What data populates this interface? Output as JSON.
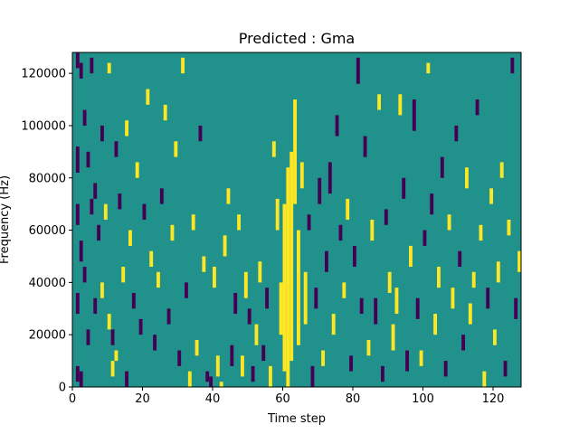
{
  "chart_data": {
    "type": "heatmap",
    "title": "Predicted : Gma",
    "xlabel": "Time step",
    "ylabel": "Frequency (Hz)",
    "xlim": [
      0,
      128
    ],
    "ylim": [
      0,
      128000
    ],
    "x_ticks": [
      0,
      20,
      40,
      60,
      80,
      100,
      120
    ],
    "y_ticks": [
      0,
      20000,
      40000,
      60000,
      80000,
      100000,
      120000
    ],
    "x_tick_labels": [
      "0",
      "20",
      "40",
      "60",
      "80",
      "100",
      "120"
    ],
    "y_tick_labels": [
      "0",
      "20000",
      "40000",
      "60000",
      "80000",
      "100000",
      "120000"
    ],
    "colors": {
      "low": "#440154",
      "mid": "#21918c",
      "high": "#fde725"
    },
    "grid": false,
    "cells": [
      {
        "t": 1,
        "f0": 122000,
        "f1": 128000,
        "v": "low"
      },
      {
        "t": 1,
        "f0": 82000,
        "f1": 92000,
        "v": "low"
      },
      {
        "t": 1,
        "f0": 62000,
        "f1": 70000,
        "v": "low"
      },
      {
        "t": 1,
        "f0": 28000,
        "f1": 36000,
        "v": "low"
      },
      {
        "t": 1,
        "f0": 2000,
        "f1": 8000,
        "v": "low"
      },
      {
        "t": 2,
        "f0": 118000,
        "f1": 124000,
        "v": "low"
      },
      {
        "t": 2,
        "f0": 48000,
        "f1": 56000,
        "v": "low"
      },
      {
        "t": 2,
        "f0": 0,
        "f1": 6000,
        "v": "low"
      },
      {
        "t": 3,
        "f0": 100000,
        "f1": 106000,
        "v": "low"
      },
      {
        "t": 3,
        "f0": 40000,
        "f1": 46000,
        "v": "low"
      },
      {
        "t": 4,
        "f0": 84000,
        "f1": 90000,
        "v": "low"
      },
      {
        "t": 4,
        "f0": 16000,
        "f1": 22000,
        "v": "low"
      },
      {
        "t": 5,
        "f0": 120000,
        "f1": 126000,
        "v": "low"
      },
      {
        "t": 5,
        "f0": 66000,
        "f1": 72000,
        "v": "low"
      },
      {
        "t": 6,
        "f0": 72000,
        "f1": 78000,
        "v": "low"
      },
      {
        "t": 6,
        "f0": 28000,
        "f1": 34000,
        "v": "low"
      },
      {
        "t": 7,
        "f0": 56000,
        "f1": 62000,
        "v": "low"
      },
      {
        "t": 8,
        "f0": 94000,
        "f1": 100000,
        "v": "low"
      },
      {
        "t": 8,
        "f0": 34000,
        "f1": 40000,
        "v": "yellow"
      },
      {
        "t": 9,
        "f0": 64000,
        "f1": 70000,
        "v": "high"
      },
      {
        "t": 10,
        "f0": 120000,
        "f1": 124000,
        "v": "high"
      },
      {
        "t": 10,
        "f0": 22000,
        "f1": 28000,
        "v": "high"
      },
      {
        "t": 11,
        "f0": 16000,
        "f1": 22000,
        "v": "low"
      },
      {
        "t": 11,
        "f0": 4000,
        "f1": 10000,
        "v": "high"
      },
      {
        "t": 12,
        "f0": 88000,
        "f1": 94000,
        "v": "low"
      },
      {
        "t": 12,
        "f0": 10000,
        "f1": 14000,
        "v": "high"
      },
      {
        "t": 13,
        "f0": 68000,
        "f1": 74000,
        "v": "low"
      },
      {
        "t": 14,
        "f0": 40000,
        "f1": 46000,
        "v": "high"
      },
      {
        "t": 15,
        "f0": 96000,
        "f1": 102000,
        "v": "high"
      },
      {
        "t": 15,
        "f0": 0,
        "f1": 6000,
        "v": "low"
      },
      {
        "t": 16,
        "f0": 54000,
        "f1": 60000,
        "v": "high"
      },
      {
        "t": 17,
        "f0": 30000,
        "f1": 36000,
        "v": "low"
      },
      {
        "t": 18,
        "f0": 80000,
        "f1": 86000,
        "v": "high"
      },
      {
        "t": 19,
        "f0": 20000,
        "f1": 26000,
        "v": "low"
      },
      {
        "t": 20,
        "f0": 64000,
        "f1": 70000,
        "v": "low"
      },
      {
        "t": 21,
        "f0": 108000,
        "f1": 114000,
        "v": "high"
      },
      {
        "t": 22,
        "f0": 46000,
        "f1": 52000,
        "v": "high"
      },
      {
        "t": 23,
        "f0": 14000,
        "f1": 20000,
        "v": "low"
      },
      {
        "t": 24,
        "f0": 38000,
        "f1": 44000,
        "v": "high"
      },
      {
        "t": 25,
        "f0": 70000,
        "f1": 76000,
        "v": "low"
      },
      {
        "t": 26,
        "f0": 102000,
        "f1": 108000,
        "v": "high"
      },
      {
        "t": 27,
        "f0": 24000,
        "f1": 30000,
        "v": "low"
      },
      {
        "t": 28,
        "f0": 56000,
        "f1": 62000,
        "v": "high"
      },
      {
        "t": 29,
        "f0": 88000,
        "f1": 94000,
        "v": "high"
      },
      {
        "t": 30,
        "f0": 8000,
        "f1": 14000,
        "v": "low"
      },
      {
        "t": 31,
        "f0": 120000,
        "f1": 126000,
        "v": "high"
      },
      {
        "t": 32,
        "f0": 34000,
        "f1": 40000,
        "v": "low"
      },
      {
        "t": 33,
        "f0": 0,
        "f1": 6000,
        "v": "high"
      },
      {
        "t": 34,
        "f0": 60000,
        "f1": 66000,
        "v": "high"
      },
      {
        "t": 35,
        "f0": 12000,
        "f1": 18000,
        "v": "high"
      },
      {
        "t": 36,
        "f0": 94000,
        "f1": 100000,
        "v": "low"
      },
      {
        "t": 37,
        "f0": 44000,
        "f1": 50000,
        "v": "high"
      },
      {
        "t": 38,
        "f0": 2000,
        "f1": 6000,
        "v": "low"
      },
      {
        "t": 39,
        "f0": 0,
        "f1": 4000,
        "v": "low"
      },
      {
        "t": 40,
        "f0": 38000,
        "f1": 46000,
        "v": "high"
      },
      {
        "t": 41,
        "f0": 4000,
        "f1": 12000,
        "v": "high"
      },
      {
        "t": 42,
        "f0": 0,
        "f1": 2000,
        "v": "high"
      },
      {
        "t": 43,
        "f0": 50000,
        "f1": 58000,
        "v": "high"
      },
      {
        "t": 44,
        "f0": 70000,
        "f1": 76000,
        "v": "high"
      },
      {
        "t": 45,
        "f0": 8000,
        "f1": 16000,
        "v": "low"
      },
      {
        "t": 46,
        "f0": 28000,
        "f1": 36000,
        "v": "low"
      },
      {
        "t": 47,
        "f0": 60000,
        "f1": 66000,
        "v": "high"
      },
      {
        "t": 48,
        "f0": 4000,
        "f1": 12000,
        "v": "high"
      },
      {
        "t": 49,
        "f0": 34000,
        "f1": 44000,
        "v": "high"
      },
      {
        "t": 50,
        "f0": 24000,
        "f1": 30000,
        "v": "low"
      },
      {
        "t": 51,
        "f0": 2000,
        "f1": 8000,
        "v": "low"
      },
      {
        "t": 52,
        "f0": 16000,
        "f1": 24000,
        "v": "high"
      },
      {
        "t": 53,
        "f0": 40000,
        "f1": 48000,
        "v": "high"
      },
      {
        "t": 54,
        "f0": 10000,
        "f1": 16000,
        "v": "low"
      },
      {
        "t": 55,
        "f0": 30000,
        "f1": 38000,
        "v": "low"
      },
      {
        "t": 56,
        "f0": 0,
        "f1": 8000,
        "v": "high"
      },
      {
        "t": 57,
        "f0": 88000,
        "f1": 94000,
        "v": "high"
      },
      {
        "t": 58,
        "f0": 60000,
        "f1": 72000,
        "v": "high"
      },
      {
        "t": 59,
        "f0": 20000,
        "f1": 40000,
        "v": "high"
      },
      {
        "t": 60,
        "f0": 6000,
        "f1": 70000,
        "v": "high"
      },
      {
        "t": 61,
        "f0": 0,
        "f1": 84000,
        "v": "high"
      },
      {
        "t": 62,
        "f0": 10000,
        "f1": 90000,
        "v": "high"
      },
      {
        "t": 63,
        "f0": 70000,
        "f1": 110000,
        "v": "high"
      },
      {
        "t": 64,
        "f0": 16000,
        "f1": 60000,
        "v": "high"
      },
      {
        "t": 65,
        "f0": 76000,
        "f1": 86000,
        "v": "high"
      },
      {
        "t": 66,
        "f0": 24000,
        "f1": 44000,
        "v": "high"
      },
      {
        "t": 67,
        "f0": 60000,
        "f1": 66000,
        "v": "low"
      },
      {
        "t": 68,
        "f0": 0,
        "f1": 8000,
        "v": "low"
      },
      {
        "t": 69,
        "f0": 30000,
        "f1": 38000,
        "v": "low"
      },
      {
        "t": 70,
        "f0": 70000,
        "f1": 80000,
        "v": "low"
      },
      {
        "t": 71,
        "f0": 8000,
        "f1": 14000,
        "v": "high"
      },
      {
        "t": 72,
        "f0": 44000,
        "f1": 52000,
        "v": "low"
      },
      {
        "t": 73,
        "f0": 74000,
        "f1": 86000,
        "v": "low"
      },
      {
        "t": 74,
        "f0": 20000,
        "f1": 28000,
        "v": "high"
      },
      {
        "t": 75,
        "f0": 96000,
        "f1": 104000,
        "v": "low"
      },
      {
        "t": 76,
        "f0": 56000,
        "f1": 62000,
        "v": "low"
      },
      {
        "t": 77,
        "f0": 34000,
        "f1": 40000,
        "v": "high"
      },
      {
        "t": 78,
        "f0": 64000,
        "f1": 72000,
        "v": "high"
      },
      {
        "t": 79,
        "f0": 6000,
        "f1": 12000,
        "v": "low"
      },
      {
        "t": 80,
        "f0": 46000,
        "f1": 54000,
        "v": "low"
      },
      {
        "t": 81,
        "f0": 116000,
        "f1": 126000,
        "v": "low"
      },
      {
        "t": 82,
        "f0": 28000,
        "f1": 34000,
        "v": "low"
      },
      {
        "t": 83,
        "f0": 88000,
        "f1": 96000,
        "v": "low"
      },
      {
        "t": 84,
        "f0": 12000,
        "f1": 18000,
        "v": "high"
      },
      {
        "t": 85,
        "f0": 56000,
        "f1": 64000,
        "v": "high"
      },
      {
        "t": 86,
        "f0": 24000,
        "f1": 34000,
        "v": "low"
      },
      {
        "t": 87,
        "f0": 106000,
        "f1": 112000,
        "v": "high"
      },
      {
        "t": 88,
        "f0": 2000,
        "f1": 8000,
        "v": "low"
      },
      {
        "t": 89,
        "f0": 62000,
        "f1": 68000,
        "v": "low"
      },
      {
        "t": 90,
        "f0": 36000,
        "f1": 44000,
        "v": "high"
      },
      {
        "t": 91,
        "f0": 14000,
        "f1": 24000,
        "v": "high"
      },
      {
        "t": 92,
        "f0": 28000,
        "f1": 38000,
        "v": "high"
      },
      {
        "t": 93,
        "f0": 104000,
        "f1": 112000,
        "v": "high"
      },
      {
        "t": 94,
        "f0": 72000,
        "f1": 80000,
        "v": "low"
      },
      {
        "t": 95,
        "f0": 6000,
        "f1": 14000,
        "v": "low"
      },
      {
        "t": 96,
        "f0": 46000,
        "f1": 54000,
        "v": "high"
      },
      {
        "t": 97,
        "f0": 98000,
        "f1": 110000,
        "v": "low"
      },
      {
        "t": 98,
        "f0": 26000,
        "f1": 34000,
        "v": "low"
      },
      {
        "t": 99,
        "f0": 8000,
        "f1": 14000,
        "v": "high"
      },
      {
        "t": 100,
        "f0": 54000,
        "f1": 60000,
        "v": "low"
      },
      {
        "t": 101,
        "f0": 120000,
        "f1": 124000,
        "v": "high"
      },
      {
        "t": 102,
        "f0": 66000,
        "f1": 74000,
        "v": "low"
      },
      {
        "t": 103,
        "f0": 20000,
        "f1": 28000,
        "v": "high"
      },
      {
        "t": 104,
        "f0": 38000,
        "f1": 46000,
        "v": "high"
      },
      {
        "t": 105,
        "f0": 80000,
        "f1": 88000,
        "v": "low"
      },
      {
        "t": 106,
        "f0": 4000,
        "f1": 10000,
        "v": "low"
      },
      {
        "t": 107,
        "f0": 60000,
        "f1": 66000,
        "v": "high"
      },
      {
        "t": 108,
        "f0": 30000,
        "f1": 38000,
        "v": "high"
      },
      {
        "t": 109,
        "f0": 94000,
        "f1": 100000,
        "v": "low"
      },
      {
        "t": 110,
        "f0": 46000,
        "f1": 52000,
        "v": "low"
      },
      {
        "t": 111,
        "f0": 14000,
        "f1": 20000,
        "v": "low"
      },
      {
        "t": 112,
        "f0": 76000,
        "f1": 84000,
        "v": "high"
      },
      {
        "t": 113,
        "f0": 24000,
        "f1": 32000,
        "v": "high"
      },
      {
        "t": 114,
        "f0": 38000,
        "f1": 44000,
        "v": "high"
      },
      {
        "t": 115,
        "f0": 104000,
        "f1": 110000,
        "v": "low"
      },
      {
        "t": 116,
        "f0": 56000,
        "f1": 62000,
        "v": "high"
      },
      {
        "t": 117,
        "f0": 0,
        "f1": 6000,
        "v": "high"
      },
      {
        "t": 118,
        "f0": 30000,
        "f1": 38000,
        "v": "low"
      },
      {
        "t": 119,
        "f0": 70000,
        "f1": 76000,
        "v": "high"
      },
      {
        "t": 120,
        "f0": 16000,
        "f1": 22000,
        "v": "high"
      },
      {
        "t": 121,
        "f0": 40000,
        "f1": 48000,
        "v": "high"
      },
      {
        "t": 122,
        "f0": 80000,
        "f1": 86000,
        "v": "high"
      },
      {
        "t": 123,
        "f0": 4000,
        "f1": 10000,
        "v": "low"
      },
      {
        "t": 124,
        "f0": 58000,
        "f1": 64000,
        "v": "high"
      },
      {
        "t": 125,
        "f0": 120000,
        "f1": 126000,
        "v": "low"
      },
      {
        "t": 126,
        "f0": 26000,
        "f1": 34000,
        "v": "low"
      },
      {
        "t": 127,
        "f0": 44000,
        "f1": 52000,
        "v": "high"
      }
    ]
  }
}
